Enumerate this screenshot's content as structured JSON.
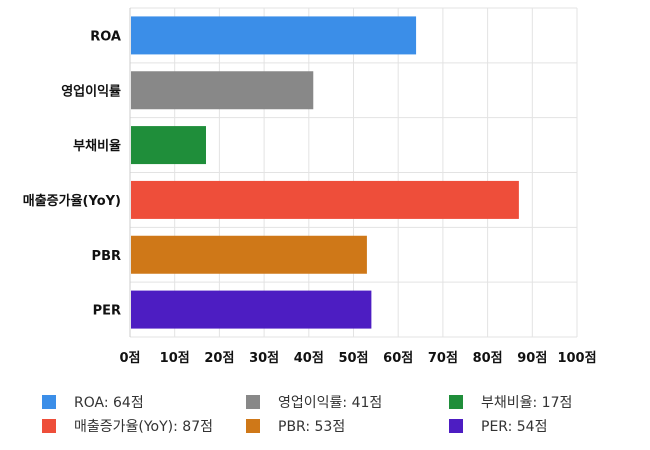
{
  "chart_data": {
    "type": "bar",
    "orientation": "horizontal",
    "categories": [
      "ROA",
      "영업이익률",
      "부채비율",
      "매출증가율(YoY)",
      "PBR",
      "PER"
    ],
    "values": [
      64,
      41,
      17,
      87,
      53,
      54
    ],
    "colors": [
      "#3b8ee8",
      "#888888",
      "#1f8e3a",
      "#ee4e3a",
      "#cf7818",
      "#4d1dc2"
    ],
    "xlim": [
      0,
      100
    ],
    "x_ticks": [
      "0점",
      "10점",
      "20점",
      "30점",
      "40점",
      "50점",
      "60점",
      "70점",
      "80점",
      "90점",
      "100점"
    ],
    "grid": true,
    "legend_position": "bottom",
    "legend": [
      "ROA: 64점",
      "영업이익률: 41점",
      "부채비율: 17점",
      "매출증가율(YoY): 87점",
      "PBR: 53점",
      "PER: 54점"
    ]
  }
}
